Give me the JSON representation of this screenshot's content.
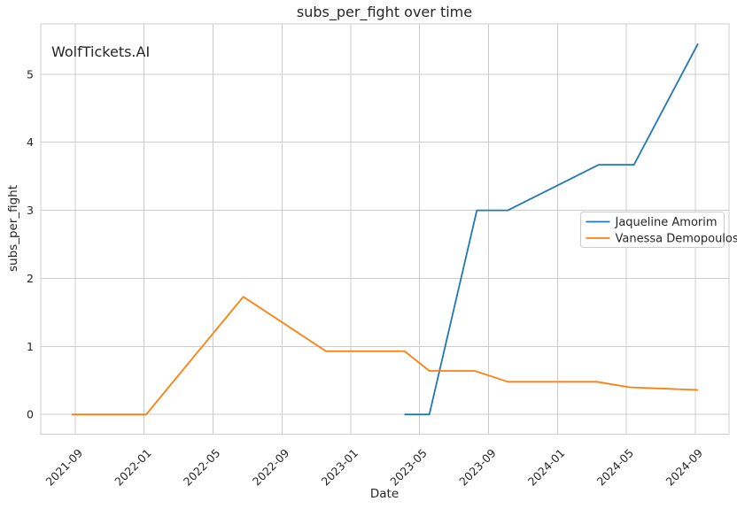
{
  "watermark": {
    "text": "WolfTickets.AI",
    "color": "#c9c9c9"
  },
  "chart_data": {
    "type": "line",
    "title": "subs_per_fight over time",
    "xlabel": "Date",
    "ylabel": "subs_per_fight",
    "x_unit": "decimal_year",
    "xlim": [
      2021.5,
      2024.83
    ],
    "ylim": [
      -0.29,
      5.74
    ],
    "grid": true,
    "x_ticks": [
      {
        "label": "2021-09",
        "t": 2021.667
      },
      {
        "label": "2022-01",
        "t": 2022.0
      },
      {
        "label": "2022-05",
        "t": 2022.333
      },
      {
        "label": "2022-09",
        "t": 2022.667
      },
      {
        "label": "2023-01",
        "t": 2023.0
      },
      {
        "label": "2023-05",
        "t": 2023.333
      },
      {
        "label": "2023-09",
        "t": 2023.667
      },
      {
        "label": "2024-01",
        "t": 2024.0
      },
      {
        "label": "2024-05",
        "t": 2024.333
      },
      {
        "label": "2024-09",
        "t": 2024.667
      }
    ],
    "y_ticks": [
      0,
      1,
      2,
      3,
      4,
      5
    ],
    "series": [
      {
        "name": "Jaqueline Amorim",
        "color": "#1f77b4",
        "points": [
          {
            "date": "2023-04",
            "t": 2023.26,
            "v": 0.0
          },
          {
            "date": "2023-05",
            "t": 2023.38,
            "v": 0.0
          },
          {
            "date": "2023-08",
            "t": 2023.61,
            "v": 3.0
          },
          {
            "date": "2023-10",
            "t": 2023.76,
            "v": 3.0
          },
          {
            "date": "2024-03",
            "t": 2024.2,
            "v": 3.67
          },
          {
            "date": "2024-05",
            "t": 2024.37,
            "v": 3.67
          },
          {
            "date": "2024-09",
            "t": 2024.68,
            "v": 5.45
          }
        ]
      },
      {
        "name": "Vanessa Demopoulos",
        "color": "#ff7f0e",
        "points": [
          {
            "date": "2021-08",
            "t": 2021.65,
            "v": 0.0
          },
          {
            "date": "2022-01",
            "t": 2022.01,
            "v": 0.0
          },
          {
            "date": "2022-06",
            "t": 2022.48,
            "v": 1.73
          },
          {
            "date": "2022-11",
            "t": 2022.88,
            "v": 0.93
          },
          {
            "date": "2023-04",
            "t": 2023.26,
            "v": 0.93
          },
          {
            "date": "2023-05",
            "t": 2023.38,
            "v": 0.64
          },
          {
            "date": "2023-08",
            "t": 2023.6,
            "v": 0.64
          },
          {
            "date": "2023-10",
            "t": 2023.76,
            "v": 0.48
          },
          {
            "date": "2024-03",
            "t": 2024.19,
            "v": 0.48
          },
          {
            "date": "2024-05",
            "t": 2024.35,
            "v": 0.4
          },
          {
            "date": "2024-09",
            "t": 2024.68,
            "v": 0.36
          }
        ]
      }
    ],
    "legend": {
      "position": "center right",
      "entries": [
        "Jaqueline Amorim",
        "Vanessa Demopoulos"
      ]
    }
  },
  "style": {
    "grid_color": "#cccccc",
    "spine_color": "#cccccc",
    "text_color": "#262626",
    "background": "#ffffff",
    "line_width": 1.8
  }
}
